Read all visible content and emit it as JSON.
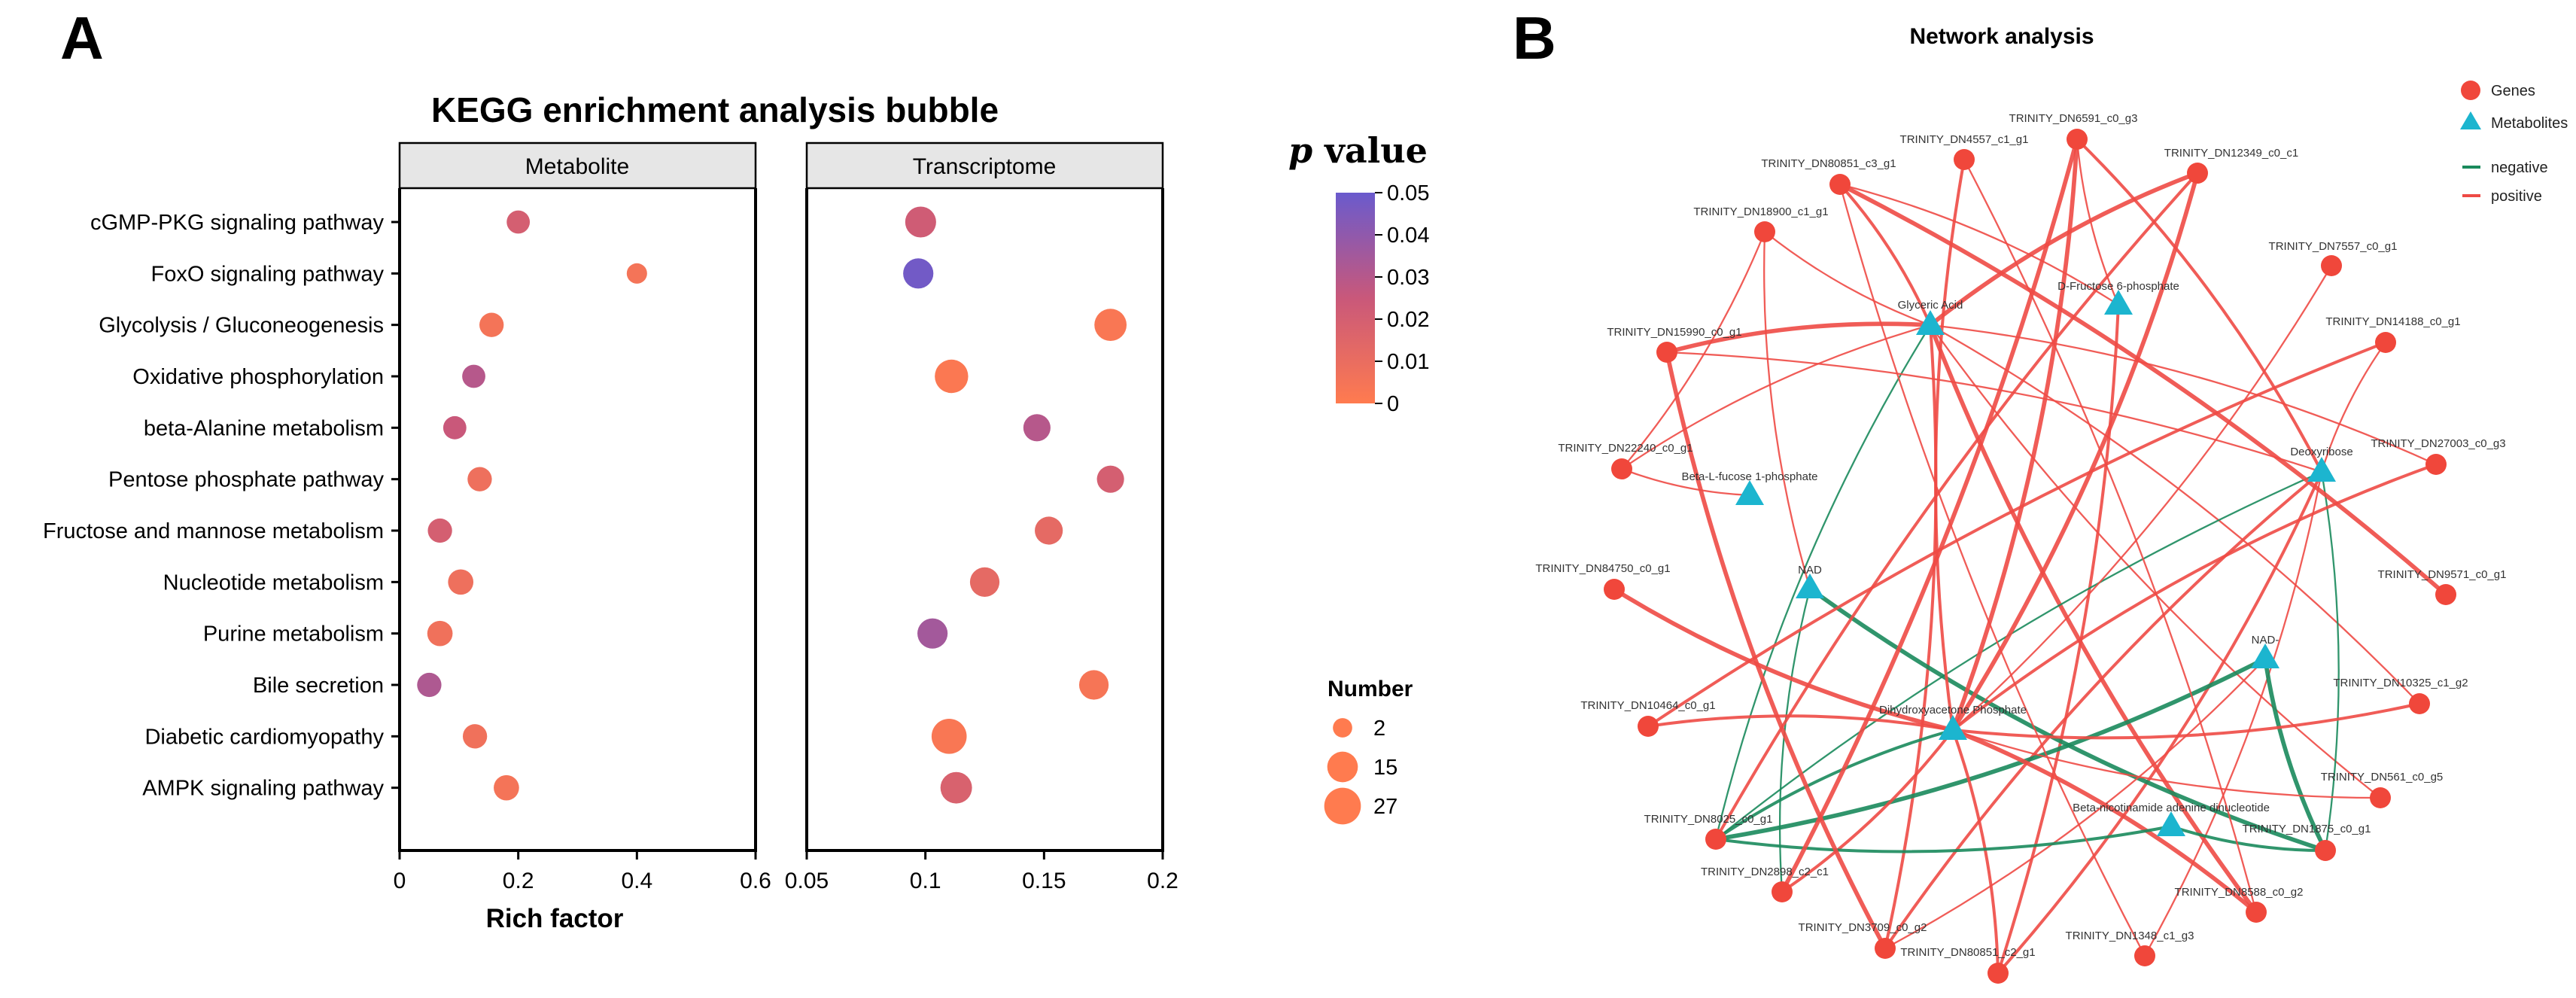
{
  "panel_a": {
    "letter": "A",
    "title": "KEGG enrichment analysis bubble",
    "legend_title_italic": "p",
    "legend_title_rest": " value",
    "size_legend_title": "Number",
    "colors": {
      "low": "#ff7b4f",
      "mid": "#c9587a",
      "high": "#6a5acd",
      "axis": "#000000",
      "strip_bg": "#e6e6e6"
    }
  },
  "panel_b": {
    "letter": "B",
    "title": "Network analysis",
    "legend": {
      "genes": "Genes",
      "metabolites": "Metabolites",
      "negative": "negative",
      "positive": "positive"
    },
    "colors": {
      "gene": "#f0473b",
      "metabolite": "#1cb5cf",
      "negative": "#1a8a5c",
      "positive": "#ee4a45"
    }
  },
  "chart_data": [
    {
      "type": "scatter",
      "subtype": "bubble",
      "title": "KEGG enrichment analysis bubble",
      "xlabel": "Rich factor",
      "ylabel": "",
      "pathways": [
        "cGMP-PKG signaling pathway",
        "FoxO signaling pathway",
        "Glycolysis / Gluconeogenesis",
        "Oxidative phosphorylation",
        "beta-Alanine metabolism",
        "Pentose phosphate pathway",
        "Fructose and mannose metabolism",
        "Nucleotide metabolism",
        "Purine metabolism",
        "Bile secretion",
        "Diabetic cardiomyopathy",
        "AMPK signaling pathway"
      ],
      "facets": [
        {
          "name": "Metabolite",
          "xlim": [
            0,
            0.6
          ],
          "xticks": [
            "0",
            "0.2",
            "0.4",
            "0.6"
          ],
          "xtick_values": [
            0,
            0.2,
            0.4,
            0.6
          ],
          "points": [
            {
              "pathway": "cGMP-PKG signaling pathway",
              "x": 0.2,
              "p": 0.02,
              "number": 4
            },
            {
              "pathway": "FoxO signaling pathway",
              "x": 0.4,
              "p": 0.005,
              "number": 2
            },
            {
              "pathway": "Glycolysis / Gluconeogenesis",
              "x": 0.155,
              "p": 0.005,
              "number": 5
            },
            {
              "pathway": "Oxidative phosphorylation",
              "x": 0.125,
              "p": 0.03,
              "number": 4
            },
            {
              "pathway": "beta-Alanine metabolism",
              "x": 0.093,
              "p": 0.025,
              "number": 4
            },
            {
              "pathway": "Pentose phosphate pathway",
              "x": 0.135,
              "p": 0.008,
              "number": 5
            },
            {
              "pathway": "Fructose and mannose metabolism",
              "x": 0.068,
              "p": 0.02,
              "number": 5
            },
            {
              "pathway": "Nucleotide metabolism",
              "x": 0.103,
              "p": 0.008,
              "number": 6
            },
            {
              "pathway": "Purine metabolism",
              "x": 0.068,
              "p": 0.007,
              "number": 6
            },
            {
              "pathway": "Bile secretion",
              "x": 0.05,
              "p": 0.032,
              "number": 5
            },
            {
              "pathway": "Diabetic cardiomyopathy",
              "x": 0.127,
              "p": 0.007,
              "number": 5
            },
            {
              "pathway": "AMPK signaling pathway",
              "x": 0.18,
              "p": 0.005,
              "number": 6
            }
          ]
        },
        {
          "name": "Transcriptome",
          "xlim": [
            0.05,
            0.2
          ],
          "xticks": [
            "0.05",
            "0.1",
            "0.15",
            "0.2"
          ],
          "xtick_values": [
            0.05,
            0.1,
            0.15,
            0.2
          ],
          "points": [
            {
              "pathway": "cGMP-PKG signaling pathway",
              "x": 0.098,
              "p": 0.022,
              "number": 13
            },
            {
              "pathway": "FoxO signaling pathway",
              "x": 0.097,
              "p": 0.048,
              "number": 12
            },
            {
              "pathway": "Glycolysis / Gluconeogenesis",
              "x": 0.178,
              "p": 0.003,
              "number": 15
            },
            {
              "pathway": "Oxidative phosphorylation",
              "x": 0.111,
              "p": 0.002,
              "number": 17
            },
            {
              "pathway": "beta-Alanine metabolism",
              "x": 0.147,
              "p": 0.03,
              "number": 8
            },
            {
              "pathway": "Pentose phosphate pathway",
              "x": 0.178,
              "p": 0.02,
              "number": 8
            },
            {
              "pathway": "Fructose and mannose metabolism",
              "x": 0.152,
              "p": 0.012,
              "number": 9
            },
            {
              "pathway": "Nucleotide metabolism",
              "x": 0.125,
              "p": 0.012,
              "number": 11
            },
            {
              "pathway": "Purine metabolism",
              "x": 0.103,
              "p": 0.035,
              "number": 12
            },
            {
              "pathway": "Bile secretion",
              "x": 0.171,
              "p": 0.004,
              "number": 11
            },
            {
              "pathway": "Diabetic cardiomyopathy",
              "x": 0.11,
              "p": 0.003,
              "number": 20
            },
            {
              "pathway": "AMPK signaling pathway",
              "x": 0.113,
              "p": 0.018,
              "number": 14
            }
          ]
        }
      ],
      "color_scale": {
        "label": "p value",
        "min": 0,
        "max": 0.05,
        "ticks": [
          "0.05",
          "0.04",
          "0.03",
          "0.02",
          "0.01",
          "0"
        ],
        "tick_values": [
          0.05,
          0.04,
          0.03,
          0.02,
          0.01,
          0
        ]
      },
      "size_scale": {
        "label": "Number",
        "values": [
          2,
          15,
          27
        ],
        "labels": [
          "2",
          "15",
          "27"
        ]
      }
    },
    {
      "type": "network",
      "title": "Network analysis",
      "genes": [
        "TRINITY_DN6591_c0_g3",
        "TRINITY_DN4557_c1_g1",
        "TRINITY_DN80851_c3_g1",
        "TRINITY_DN12349_c0_c1",
        "TRINITY_DN18900_c1_g1",
        "TRINITY_DN7557_c0_g1",
        "TRINITY_DN15990_c0_g1",
        "TRINITY_DN14188_c0_g1",
        "TRINITY_DN22240_c0_g1",
        "TRINITY_DN27003_c0_g3",
        "TRINITY_DN84750_c0_g1",
        "TRINITY_DN9571_c0_g1",
        "TRINITY_DN10325_c1_g2",
        "TRINITY_DN10464_c0_g1",
        "TRINITY_DN561_c0_g5",
        "TRINITY_DN8025_c0_g1",
        "TRINITY_DN1875_c0_g1",
        "TRINITY_DN2898_c2_c1",
        "TRINITY_DN8588_c0_g2",
        "TRINITY_DN3709_c0_g2",
        "TRINITY_DN1348_c1_g3",
        "TRINITY_DN80851_c2_g1"
      ],
      "metabolites": [
        "Glyceric Acid",
        "D-Fructose 6-phosphate",
        "Beta-L-fucose 1-phosphate",
        "Deoxyribose",
        "NAD",
        "NAD-",
        "Dihydroxyacetone Phosphate",
        "Beta-nicotinamide adenine dinucleotide"
      ],
      "edges": [
        {
          "source": "Glyceric Acid",
          "target": "TRINITY_DN15990_c0_g1",
          "sign": "positive",
          "weight": 3
        },
        {
          "source": "Glyceric Acid",
          "target": "TRINITY_DN12349_c0_c1",
          "sign": "positive",
          "weight": 3
        },
        {
          "source": "Glyceric Acid",
          "target": "TRINITY_DN80851_c3_g1",
          "sign": "positive",
          "weight": 2
        },
        {
          "source": "Glyceric Acid",
          "target": "TRINITY_DN18900_c1_g1",
          "sign": "positive",
          "weight": 1
        },
        {
          "source": "Glyceric Acid",
          "target": "TRINITY_DN22240_c0_g1",
          "sign": "positive",
          "weight": 1
        },
        {
          "source": "Glyceric Acid",
          "target": "TRINITY_DN27003_c0_g3",
          "sign": "positive",
          "weight": 1
        },
        {
          "source": "Glyceric Acid",
          "target": "TRINITY_DN8588_c0_g2",
          "sign": "positive",
          "weight": 3
        },
        {
          "source": "Glyceric Acid",
          "target": "TRINITY_DN3709_c0_g2",
          "sign": "positive",
          "weight": 2
        },
        {
          "source": "Glyceric Acid",
          "target": "TRINITY_DN8025_c0_g1",
          "sign": "negative",
          "weight": 1
        },
        {
          "source": "Glyceric Acid",
          "target": "TRINITY_DN10325_c1_g2",
          "sign": "positive",
          "weight": 1
        },
        {
          "source": "Glyceric Acid",
          "target": "TRINITY_DN561_c0_g5",
          "sign": "positive",
          "weight": 1
        },
        {
          "source": "D-Fructose 6-phosphate",
          "target": "TRINITY_DN6591_c0_g3",
          "sign": "positive",
          "weight": 1
        },
        {
          "source": "D-Fructose 6-phosphate",
          "target": "TRINITY_DN80851_c3_g1",
          "sign": "positive",
          "weight": 1
        },
        {
          "source": "D-Fructose 6-phosphate",
          "target": "TRINITY_DN80851_c2_g1",
          "sign": "positive",
          "weight": 2
        },
        {
          "source": "Deoxyribose",
          "target": "TRINITY_DN6591_c0_g3",
          "sign": "positive",
          "weight": 2
        },
        {
          "source": "Deoxyribose",
          "target": "TRINITY_DN14188_c0_g1",
          "sign": "positive",
          "weight": 1
        },
        {
          "source": "Deoxyribose",
          "target": "TRINITY_DN15990_c0_g1",
          "sign": "positive",
          "weight": 1
        },
        {
          "source": "Deoxyribose",
          "target": "TRINITY_DN80851_c2_g1",
          "sign": "positive",
          "weight": 2
        },
        {
          "source": "Deoxyribose",
          "target": "TRINITY_DN8025_c0_g1",
          "sign": "negative",
          "weight": 1
        },
        {
          "source": "Deoxyribose",
          "target": "TRINITY_DN1875_c0_g1",
          "sign": "negative",
          "weight": 1
        },
        {
          "source": "Deoxyribose",
          "target": "TRINITY_DN3709_c0_g2",
          "sign": "positive",
          "weight": 2
        },
        {
          "source": "Deoxyribose",
          "target": "TRINITY_DN1348_c1_g3",
          "sign": "positive",
          "weight": 1
        },
        {
          "source": "NAD",
          "target": "TRINITY_DN1875_c0_g1",
          "sign": "negative",
          "weight": 3
        },
        {
          "source": "NAD",
          "target": "TRINITY_DN18900_c1_g1",
          "sign": "positive",
          "weight": 1
        },
        {
          "source": "NAD",
          "target": "TRINITY_DN2898_c2_c1",
          "sign": "negative",
          "weight": 1
        },
        {
          "source": "NAD-",
          "target": "TRINITY_DN8025_c0_g1",
          "sign": "negative",
          "weight": 3
        },
        {
          "source": "NAD-",
          "target": "TRINITY_DN1875_c0_g1",
          "sign": "negative",
          "weight": 3
        },
        {
          "source": "NAD-",
          "target": "TRINITY_DN3709_c0_g2",
          "sign": "positive",
          "weight": 1
        },
        {
          "source": "Dihydroxyacetone Phosphate",
          "target": "TRINITY_DN6591_c0_g3",
          "sign": "positive",
          "weight": 3
        },
        {
          "source": "Dihydroxyacetone Phosphate",
          "target": "TRINITY_DN4557_c1_g1",
          "sign": "positive",
          "weight": 2
        },
        {
          "source": "Dihydroxyacetone Phosphate",
          "target": "TRINITY_DN12349_c0_c1",
          "sign": "positive",
          "weight": 3
        },
        {
          "source": "Dihydroxyacetone Phosphate",
          "target": "TRINITY_DN84750_c0_g1",
          "sign": "positive",
          "weight": 3
        },
        {
          "source": "Dihydroxyacetone Phosphate",
          "target": "TRINITY_DN10464_c0_g1",
          "sign": "positive",
          "weight": 2
        },
        {
          "source": "Dihydroxyacetone Phosphate",
          "target": "TRINITY_DN8588_c0_g2",
          "sign": "positive",
          "weight": 3
        },
        {
          "source": "Dihydroxyacetone Phosphate",
          "target": "TRINITY_DN8025_c0_g1",
          "sign": "negative",
          "weight": 2
        },
        {
          "source": "Dihydroxyacetone Phosphate",
          "target": "TRINITY_DN80851_c2_g1",
          "sign": "positive",
          "weight": 2
        },
        {
          "source": "Dihydroxyacetone Phosphate",
          "target": "TRINITY_DN10325_c1_g2",
          "sign": "positive",
          "weight": 2
        },
        {
          "source": "Dihydroxyacetone Phosphate",
          "target": "TRINITY_DN27003_c0_g3",
          "sign": "positive",
          "weight": 2
        },
        {
          "source": "Dihydroxyacetone Phosphate",
          "target": "TRINITY_DN7557_c0_g1",
          "sign": "positive",
          "weight": 1
        },
        {
          "source": "Dihydroxyacetone Phosphate",
          "target": "TRINITY_DN2898_c2_c1",
          "sign": "positive",
          "weight": 2
        },
        {
          "source": "Dihydroxyacetone Phosphate",
          "target": "TRINITY_DN561_c0_g5",
          "sign": "positive",
          "weight": 1
        },
        {
          "source": "Beta-nicotinamide adenine dinucleotide",
          "target": "TRINITY_DN8025_c0_g1",
          "sign": "negative",
          "weight": 2
        },
        {
          "source": "Beta-nicotinamide adenine dinucleotide",
          "target": "TRINITY_DN1875_c0_g1",
          "sign": "negative",
          "weight": 2
        },
        {
          "source": "Beta-L-fucose 1-phosphate",
          "target": "TRINITY_DN22240_c0_g1",
          "sign": "positive",
          "weight": 1
        },
        {
          "source": "TRINITY_DN15990_c0_g1",
          "target": "TRINITY_DN3709_c0_g2",
          "sign": "positive",
          "weight": 3
        },
        {
          "source": "TRINITY_DN80851_c3_g1",
          "target": "TRINITY_DN9571_c0_g1",
          "sign": "positive",
          "weight": 3
        },
        {
          "source": "TRINITY_DN80851_c3_g1",
          "target": "TRINITY_DN1348_c1_g3",
          "sign": "positive",
          "weight": 1
        },
        {
          "source": "TRINITY_DN6591_c0_g3",
          "target": "TRINITY_DN2898_c2_c1",
          "sign": "positive",
          "weight": 3
        },
        {
          "source": "TRINITY_DN12349_c0_c1",
          "target": "TRINITY_DN8025_c0_g1",
          "sign": "positive",
          "weight": 2
        },
        {
          "source": "TRINITY_DN4557_c1_g1",
          "target": "TRINITY_DN8588_c0_g2",
          "sign": "positive",
          "weight": 1
        },
        {
          "source": "TRINITY_DN22240_c0_g1",
          "target": "TRINITY_DN18900_c1_g1",
          "sign": "positive",
          "weight": 1
        },
        {
          "source": "TRINITY_DN10464_c0_g1",
          "target": "TRINITY_DN14188_c0_g1",
          "sign": "positive",
          "weight": 2
        }
      ]
    }
  ]
}
